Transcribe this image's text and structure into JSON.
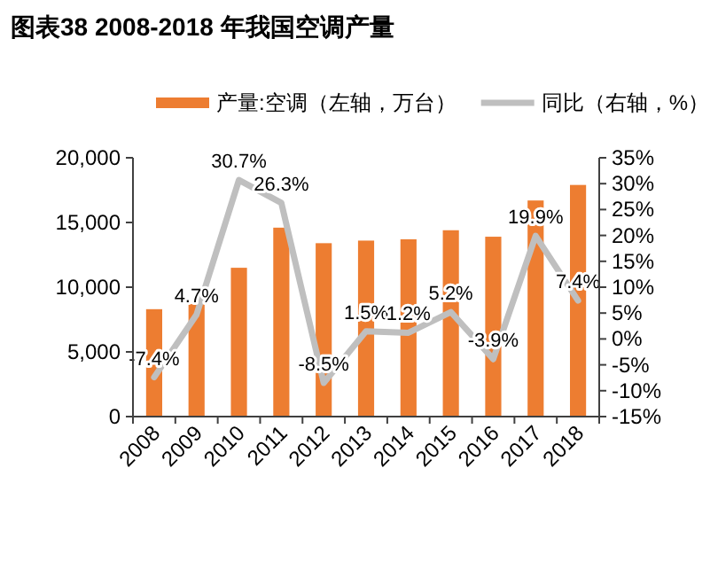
{
  "chart_data": {
    "type": "bar",
    "title": "图表38 2008-2018 年我国空调产量",
    "categories": [
      "2008",
      "2009",
      "2010",
      "2011",
      "2012",
      "2013",
      "2014",
      "2015",
      "2016",
      "2017",
      "2018"
    ],
    "series": [
      {
        "name": "产量:空调（左轴，万台）",
        "color": "#ed7d31",
        "values": [
          8300,
          8700,
          11500,
          14600,
          13400,
          13600,
          13700,
          14400,
          13900,
          16700,
          17900
        ]
      },
      {
        "name": "同比（右轴，%）",
        "type": "line",
        "axis": "y2",
        "color": "#bfbfbf",
        "values": [
          -7.4,
          4.7,
          30.7,
          26.3,
          -8.5,
          1.5,
          1.2,
          5.2,
          -3.9,
          19.9,
          7.4
        ],
        "value_labels": [
          "-7.4%",
          "4.7%",
          "30.7%",
          "26.3%",
          "-8.5%",
          "1.5%",
          "1.2%",
          "5.2%",
          "-3.9%",
          "19.9%",
          "7.4%"
        ]
      }
    ],
    "ylim": [
      0,
      20000
    ],
    "yticks": [
      {
        "value": 0,
        "label": "0"
      },
      {
        "value": 5000,
        "label": "5,000"
      },
      {
        "value": 10000,
        "label": "10,000"
      },
      {
        "value": 15000,
        "label": "15,000"
      },
      {
        "value": 20000,
        "label": "20,000"
      }
    ],
    "y2lim": [
      -15,
      35
    ],
    "y2ticks": [
      {
        "value": -15,
        "label": "-15%"
      },
      {
        "value": -10,
        "label": "-10%"
      },
      {
        "value": -5,
        "label": "-5%"
      },
      {
        "value": 0,
        "label": "0%"
      },
      {
        "value": 5,
        "label": "5%"
      },
      {
        "value": 10,
        "label": "10%"
      },
      {
        "value": 15,
        "label": "15%"
      },
      {
        "value": 20,
        "label": "20%"
      },
      {
        "value": 25,
        "label": "25%"
      },
      {
        "value": 30,
        "label": "30%"
      },
      {
        "value": 35,
        "label": "35%"
      }
    ],
    "legend": "top",
    "grid": false
  }
}
